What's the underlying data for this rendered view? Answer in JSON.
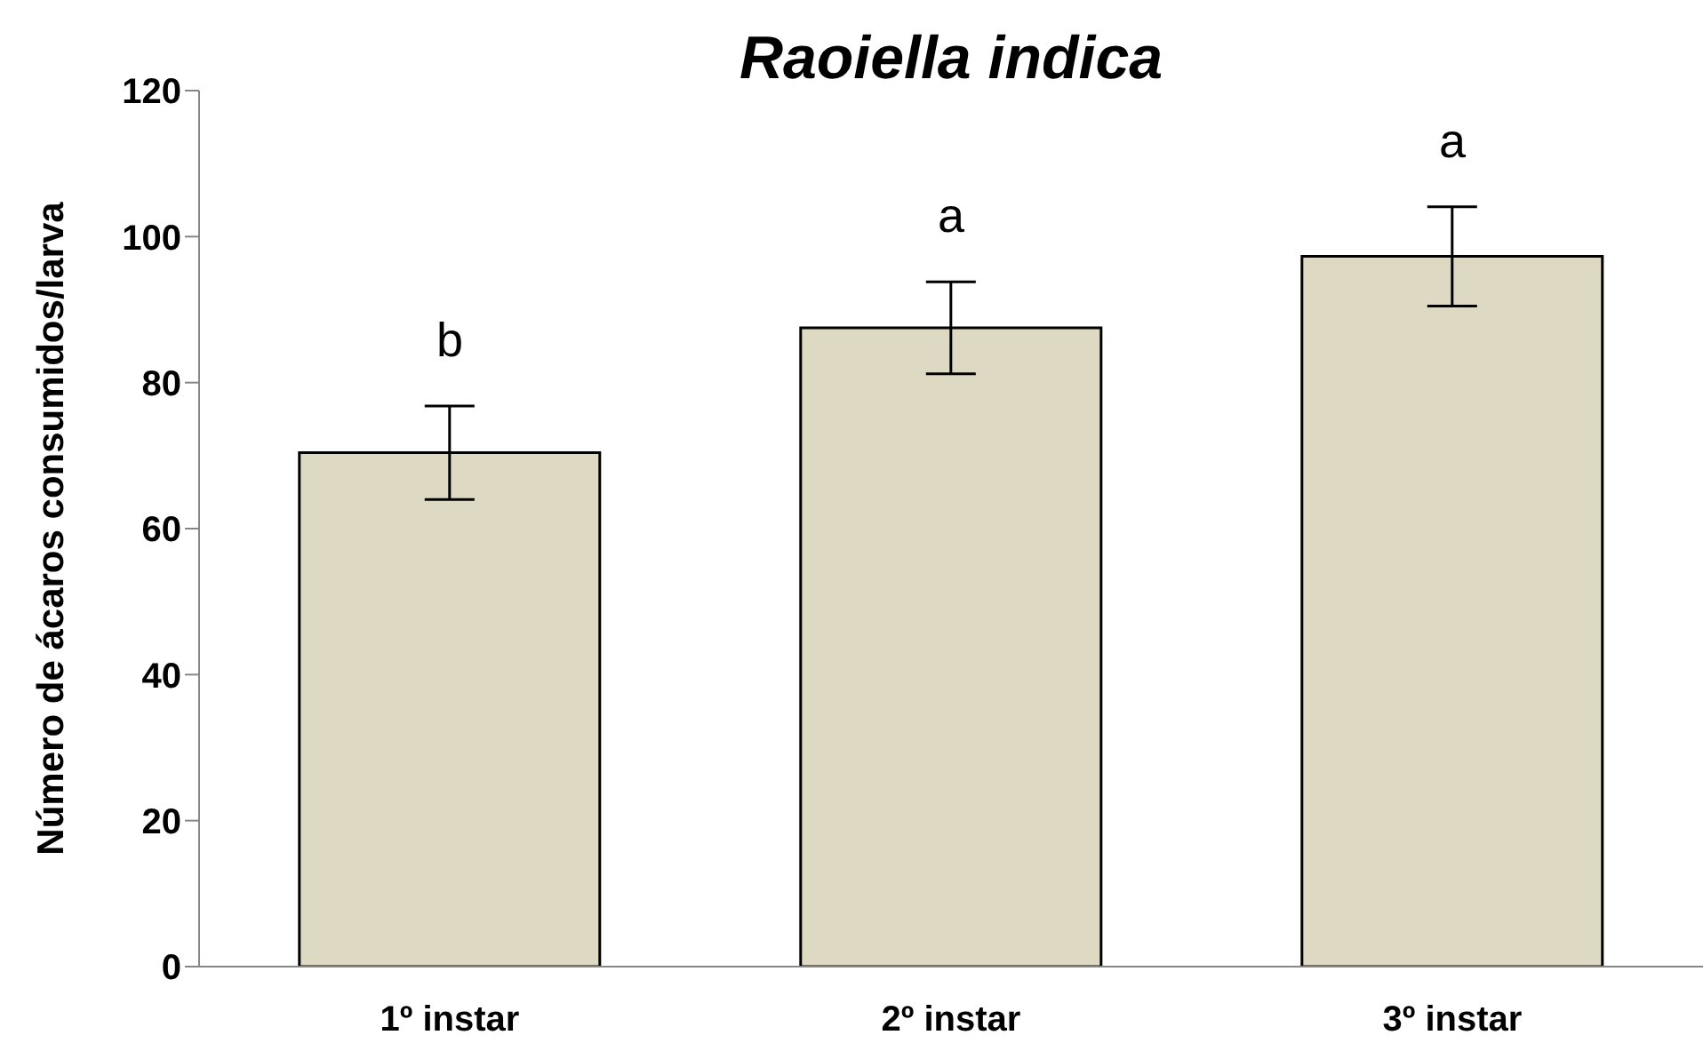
{
  "chart_data": {
    "type": "bar",
    "title": "Raoiella indica",
    "ylabel": "Número de ácaros consumidos/larva",
    "categories": [
      "1º instar",
      "2º instar",
      "3º instar"
    ],
    "values": [
      70.4,
      87.5,
      97.3
    ],
    "errors": [
      6.4,
      6.3,
      6.8
    ],
    "color": "#ddd9c3",
    "ylim": [
      0,
      120
    ],
    "yticks": [
      0,
      20,
      40,
      60,
      80,
      100,
      120
    ],
    "grid": false,
    "legend": false,
    "annotations": [
      "b",
      "a",
      "a"
    ]
  }
}
